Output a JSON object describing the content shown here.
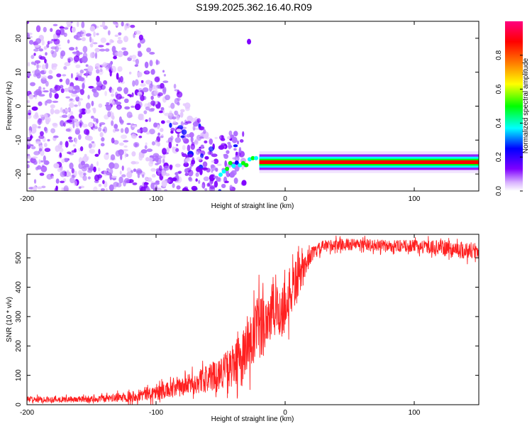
{
  "title": "S199.2025.362.16.40.R09",
  "chart_data": [
    {
      "type": "heatmap",
      "title": "S199.2025.362.16.40.R09",
      "xlabel": "Height of straight line (km)",
      "ylabel": "Frequency (Hz)",
      "xlim": [
        -200,
        150
      ],
      "ylim": [
        -25,
        25
      ],
      "xticks": [
        -200,
        -100,
        0,
        100
      ],
      "yticks": [
        -20,
        -10,
        0,
        10,
        20
      ],
      "colorbar": {
        "label": "Normalized spectral amplitude",
        "range": [
          0,
          1
        ],
        "ticks": [
          0.0,
          0.2,
          0.4,
          0.6,
          0.8
        ],
        "tick_labels": [
          "0.0",
          "0.2",
          "0.4",
          "0.6",
          "0.8"
        ],
        "colormap": [
          "#ffffff",
          "#7f00ff",
          "#0000ff",
          "#00ffff",
          "#00ff00",
          "#ffff00",
          "#ff8000",
          "#ff0000",
          "#ff0080"
        ]
      },
      "features": {
        "scatter_region_x": [
          -200,
          -30
        ],
        "narrow_band": {
          "x": [
            -50,
            150
          ],
          "frequency_hz": -16.5,
          "peak_amplitude": 0.9
        },
        "isolated_spot": {
          "x": -28,
          "frequency_hz": 19
        }
      }
    },
    {
      "type": "line",
      "xlabel": "Height of straight line (km)",
      "ylabel": "SNR (10 * v/v)",
      "xlim": [
        -200,
        150
      ],
      "ylim": [
        0,
        580
      ],
      "xticks": [
        -200,
        -100,
        0,
        100
      ],
      "yticks": [
        0,
        100,
        200,
        300,
        400,
        500
      ],
      "series": [
        {
          "name": "SNR",
          "color": "#ff2020",
          "x": [
            -200,
            -180,
            -160,
            -140,
            -120,
            -100,
            -90,
            -80,
            -70,
            -60,
            -50,
            -40,
            -35,
            -30,
            -25,
            -20,
            -15,
            -10,
            -5,
            0,
            5,
            10,
            15,
            20,
            30,
            40,
            60,
            80,
            100,
            120,
            140,
            150
          ],
          "y": [
            18,
            18,
            18,
            20,
            28,
            42,
            50,
            60,
            75,
            90,
            110,
            135,
            150,
            175,
            220,
            260,
            290,
            310,
            320,
            330,
            390,
            430,
            470,
            510,
            540,
            545,
            545,
            540,
            540,
            535,
            525,
            525
          ],
          "noise_amplitude": [
            10,
            10,
            10,
            12,
            18,
            25,
            28,
            32,
            38,
            45,
            55,
            70,
            90,
            110,
            120,
            120,
            110,
            100,
            100,
            100,
            90,
            70,
            40,
            25,
            20,
            20,
            20,
            20,
            20,
            25,
            30,
            30
          ]
        }
      ]
    }
  ]
}
